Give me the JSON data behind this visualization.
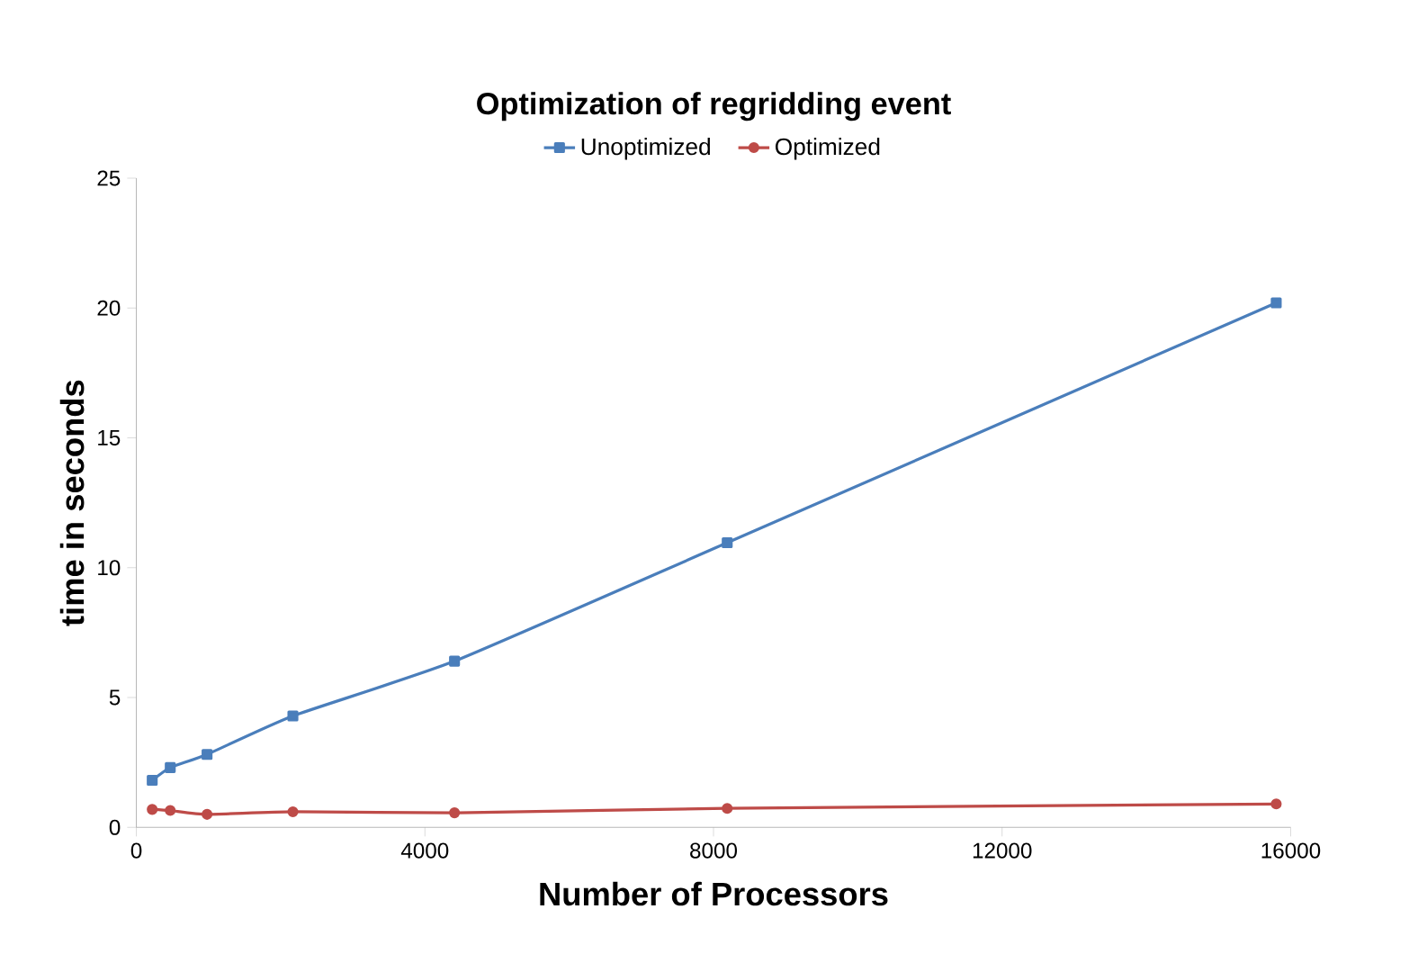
{
  "chart_data": {
    "type": "line",
    "title": "Optimization of regridding event",
    "xlabel": "Number of  Processors",
    "ylabel": "time in seconds",
    "xlim": [
      0,
      16000
    ],
    "xticks": [
      0,
      4000,
      8000,
      12000,
      16000
    ],
    "ylim": [
      0,
      25
    ],
    "yticks": [
      0,
      5,
      10,
      15,
      20,
      25
    ],
    "legend": "top",
    "grid": false,
    "series": [
      {
        "name": "Unoptimized",
        "color": "#4a7ebb",
        "marker": "square",
        "x": [
          220,
          470,
          980,
          2170,
          4410,
          8190,
          15800
        ],
        "values": [
          1.81,
          2.3,
          2.81,
          4.29,
          6.4,
          10.96,
          20.2
        ]
      },
      {
        "name": "Optimized",
        "color": "#be4b48",
        "marker": "circle",
        "x": [
          220,
          470,
          980,
          2170,
          4410,
          8190,
          15800
        ],
        "values": [
          0.69,
          0.65,
          0.5,
          0.6,
          0.56,
          0.73,
          0.9
        ]
      }
    ]
  }
}
